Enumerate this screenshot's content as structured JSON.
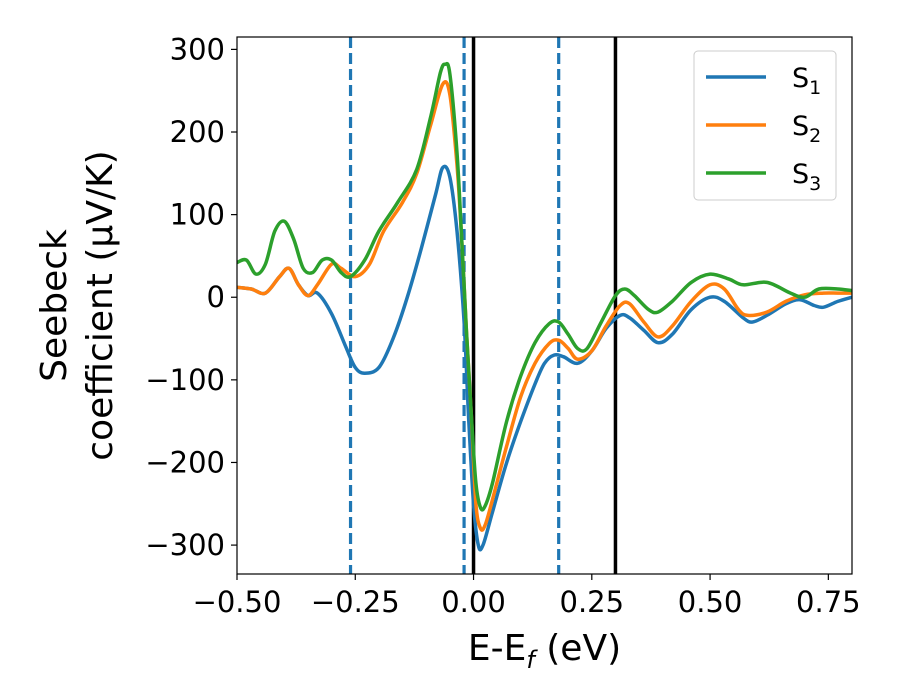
{
  "chart_data": {
    "type": "line",
    "xlabel": "E-E",
    "xlabel_sub": "f",
    "xlabel_unit": " (eV)",
    "ylabel_line1": "Seebeck",
    "ylabel_line2": "coefficient  (μV/K)",
    "xlim": [
      -0.5,
      0.8
    ],
    "ylim": [
      -335,
      315
    ],
    "xticks": [
      -0.5,
      -0.25,
      0.0,
      0.25,
      0.5,
      0.75
    ],
    "xtick_labels": [
      "−0.50",
      "−0.25",
      "0.00",
      "0.25",
      "0.50",
      "0.75"
    ],
    "yticks": [
      -300,
      -200,
      -100,
      0,
      100,
      200,
      300
    ],
    "ytick_labels": [
      "−300",
      "−200",
      "−100",
      "0",
      "100",
      "200",
      "300"
    ],
    "grid": false,
    "legend_position": "top-right",
    "vlines": [
      {
        "x": -0.26,
        "style": "dashed",
        "color": "#1f77b4"
      },
      {
        "x": -0.02,
        "style": "dashed",
        "color": "#1f77b4"
      },
      {
        "x": 0.18,
        "style": "dashed",
        "color": "#1f77b4"
      },
      {
        "x": 0.0,
        "style": "solid",
        "color": "#000000"
      },
      {
        "x": 0.3,
        "style": "solid",
        "color": "#000000"
      }
    ],
    "series": [
      {
        "name": "S",
        "sub": "1",
        "color": "#1f77b4",
        "points": [
          [
            -0.5,
            12
          ],
          [
            -0.47,
            10
          ],
          [
            -0.44,
            5
          ],
          [
            -0.41,
            25
          ],
          [
            -0.39,
            35
          ],
          [
            -0.37,
            15
          ],
          [
            -0.35,
            2
          ],
          [
            -0.33,
            5
          ],
          [
            -0.3,
            -20
          ],
          [
            -0.27,
            -60
          ],
          [
            -0.25,
            -85
          ],
          [
            -0.23,
            -92
          ],
          [
            -0.2,
            -85
          ],
          [
            -0.17,
            -50
          ],
          [
            -0.14,
            0
          ],
          [
            -0.11,
            60
          ],
          [
            -0.08,
            125
          ],
          [
            -0.065,
            157
          ],
          [
            -0.05,
            145
          ],
          [
            -0.035,
            80
          ],
          [
            -0.02,
            -30
          ],
          [
            -0.01,
            -150
          ],
          [
            0.0,
            -250
          ],
          [
            0.01,
            -300
          ],
          [
            0.02,
            -300
          ],
          [
            0.04,
            -260
          ],
          [
            0.07,
            -200
          ],
          [
            0.1,
            -150
          ],
          [
            0.13,
            -105
          ],
          [
            0.15,
            -80
          ],
          [
            0.17,
            -70
          ],
          [
            0.19,
            -72
          ],
          [
            0.22,
            -80
          ],
          [
            0.25,
            -65
          ],
          [
            0.28,
            -38
          ],
          [
            0.31,
            -22
          ],
          [
            0.33,
            -25
          ],
          [
            0.36,
            -40
          ],
          [
            0.39,
            -55
          ],
          [
            0.42,
            -45
          ],
          [
            0.46,
            -15
          ],
          [
            0.5,
            0
          ],
          [
            0.53,
            -5
          ],
          [
            0.57,
            -25
          ],
          [
            0.59,
            -30
          ],
          [
            0.62,
            -22
          ],
          [
            0.66,
            -8
          ],
          [
            0.69,
            -3
          ],
          [
            0.72,
            -10
          ],
          [
            0.74,
            -12
          ],
          [
            0.77,
            -5
          ],
          [
            0.8,
            0
          ]
        ]
      },
      {
        "name": "S",
        "sub": "2",
        "color": "#ff7f0e",
        "points": [
          [
            -0.5,
            12
          ],
          [
            -0.47,
            10
          ],
          [
            -0.44,
            5
          ],
          [
            -0.41,
            25
          ],
          [
            -0.39,
            35
          ],
          [
            -0.37,
            15
          ],
          [
            -0.35,
            2
          ],
          [
            -0.33,
            15
          ],
          [
            -0.3,
            40
          ],
          [
            -0.28,
            35
          ],
          [
            -0.25,
            25
          ],
          [
            -0.22,
            40
          ],
          [
            -0.19,
            80
          ],
          [
            -0.15,
            115
          ],
          [
            -0.12,
            150
          ],
          [
            -0.09,
            210
          ],
          [
            -0.065,
            258
          ],
          [
            -0.05,
            245
          ],
          [
            -0.035,
            160
          ],
          [
            -0.025,
            70
          ],
          [
            -0.015,
            -40
          ],
          [
            -0.005,
            -140
          ],
          [
            0.005,
            -250
          ],
          [
            0.015,
            -280
          ],
          [
            0.025,
            -275
          ],
          [
            0.04,
            -245
          ],
          [
            0.07,
            -180
          ],
          [
            0.1,
            -120
          ],
          [
            0.13,
            -80
          ],
          [
            0.16,
            -56
          ],
          [
            0.18,
            -52
          ],
          [
            0.2,
            -62
          ],
          [
            0.22,
            -75
          ],
          [
            0.25,
            -65
          ],
          [
            0.28,
            -35
          ],
          [
            0.31,
            -10
          ],
          [
            0.33,
            -8
          ],
          [
            0.36,
            -30
          ],
          [
            0.39,
            -48
          ],
          [
            0.42,
            -35
          ],
          [
            0.46,
            -5
          ],
          [
            0.5,
            15
          ],
          [
            0.53,
            10
          ],
          [
            0.56,
            -15
          ],
          [
            0.58,
            -22
          ],
          [
            0.62,
            -18
          ],
          [
            0.66,
            -5
          ],
          [
            0.7,
            3
          ],
          [
            0.74,
            5
          ],
          [
            0.77,
            5
          ],
          [
            0.8,
            5
          ]
        ]
      },
      {
        "name": "S",
        "sub": "3",
        "color": "#2ca02c",
        "points": [
          [
            -0.5,
            42
          ],
          [
            -0.48,
            45
          ],
          [
            -0.46,
            28
          ],
          [
            -0.44,
            40
          ],
          [
            -0.42,
            80
          ],
          [
            -0.4,
            92
          ],
          [
            -0.38,
            70
          ],
          [
            -0.36,
            35
          ],
          [
            -0.34,
            30
          ],
          [
            -0.32,
            45
          ],
          [
            -0.3,
            45
          ],
          [
            -0.28,
            30
          ],
          [
            -0.26,
            25
          ],
          [
            -0.23,
            45
          ],
          [
            -0.2,
            80
          ],
          [
            -0.16,
            115
          ],
          [
            -0.12,
            155
          ],
          [
            -0.09,
            220
          ],
          [
            -0.07,
            272
          ],
          [
            -0.06,
            282
          ],
          [
            -0.05,
            270
          ],
          [
            -0.035,
            175
          ],
          [
            -0.025,
            70
          ],
          [
            -0.015,
            -40
          ],
          [
            -0.005,
            -140
          ],
          [
            0.005,
            -225
          ],
          [
            0.015,
            -255
          ],
          [
            0.025,
            -252
          ],
          [
            0.04,
            -225
          ],
          [
            0.07,
            -150
          ],
          [
            0.1,
            -95
          ],
          [
            0.13,
            -55
          ],
          [
            0.16,
            -32
          ],
          [
            0.18,
            -30
          ],
          [
            0.2,
            -45
          ],
          [
            0.22,
            -62
          ],
          [
            0.24,
            -62
          ],
          [
            0.27,
            -30
          ],
          [
            0.3,
            2
          ],
          [
            0.32,
            10
          ],
          [
            0.34,
            2
          ],
          [
            0.37,
            -15
          ],
          [
            0.39,
            -18
          ],
          [
            0.42,
            -5
          ],
          [
            0.46,
            18
          ],
          [
            0.5,
            28
          ],
          [
            0.54,
            22
          ],
          [
            0.57,
            15
          ],
          [
            0.62,
            18
          ],
          [
            0.67,
            5
          ],
          [
            0.7,
            0
          ],
          [
            0.73,
            10
          ],
          [
            0.77,
            10
          ],
          [
            0.8,
            8
          ]
        ]
      }
    ]
  }
}
